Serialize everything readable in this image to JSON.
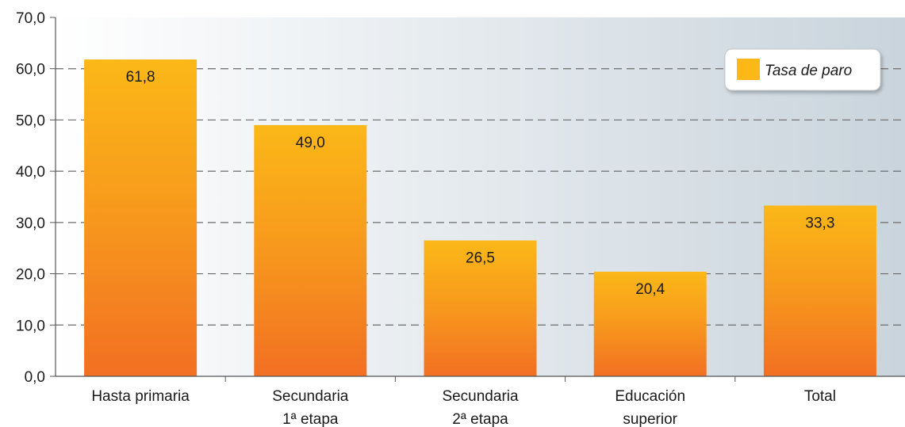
{
  "chart_data": {
    "type": "bar",
    "categories": [
      [
        "Hasta primaria"
      ],
      [
        "Secundaria",
        "1ª etapa"
      ],
      [
        "Secundaria",
        "2ª etapa"
      ],
      [
        "Educación",
        "superior"
      ],
      [
        "Total"
      ]
    ],
    "series": [
      {
        "name": "Tasa de paro",
        "values": [
          61.8,
          49.0,
          26.5,
          20.4,
          33.3
        ]
      }
    ],
    "value_labels": [
      "61,8",
      "49,0",
      "26,5",
      "20,4",
      "33,3"
    ],
    "y_ticks": [
      "0,0",
      "10,0",
      "20,0",
      "30,0",
      "40,0",
      "50,0",
      "60,0",
      "70,0"
    ],
    "ylim": [
      0,
      70
    ],
    "grid": true,
    "legend_position": "top-right",
    "colors": {
      "bar_top": "#fbb817",
      "bar_bottom": "#f26f22",
      "legend_swatch": "#fbb817",
      "grid": "#6b6b6b",
      "plot_bg_left": "#ffffff",
      "plot_bg_right": "#c9d4dc"
    }
  }
}
